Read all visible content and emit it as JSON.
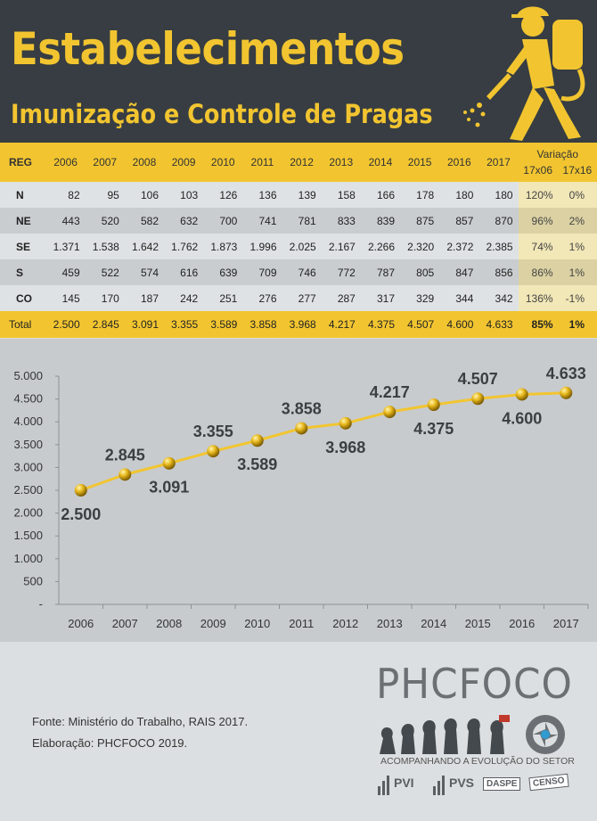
{
  "header": {
    "title": "Estabelecimentos",
    "subtitle": "Imunização e Controle de Pragas"
  },
  "colors": {
    "accent": "#f2c530",
    "header_bg": "#373d42",
    "line": "#f2c530",
    "text_dark": "#3b3f43"
  },
  "table": {
    "reg_header": "REG",
    "years": [
      "2006",
      "2007",
      "2008",
      "2009",
      "2010",
      "2011",
      "2012",
      "2013",
      "2014",
      "2015",
      "2016",
      "2017"
    ],
    "variation_title": "Variação",
    "variation_cols": [
      "17x06",
      "17x16"
    ],
    "rows": [
      {
        "reg": "N",
        "values": [
          "82",
          "95",
          "106",
          "103",
          "126",
          "136",
          "139",
          "158",
          "166",
          "178",
          "180",
          "180"
        ],
        "v1": "120%",
        "v2": "0%"
      },
      {
        "reg": "NE",
        "values": [
          "443",
          "520",
          "582",
          "632",
          "700",
          "741",
          "781",
          "833",
          "839",
          "875",
          "857",
          "870"
        ],
        "v1": "96%",
        "v2": "2%"
      },
      {
        "reg": "SE",
        "values": [
          "1.371",
          "1.538",
          "1.642",
          "1.762",
          "1.873",
          "1.996",
          "2.025",
          "2.167",
          "2.266",
          "2.320",
          "2.372",
          "2.385"
        ],
        "v1": "74%",
        "v2": "1%"
      },
      {
        "reg": "S",
        "values": [
          "459",
          "522",
          "574",
          "616",
          "639",
          "709",
          "746",
          "772",
          "787",
          "805",
          "847",
          "856"
        ],
        "v1": "86%",
        "v2": "1%"
      },
      {
        "reg": "CO",
        "values": [
          "145",
          "170",
          "187",
          "242",
          "251",
          "276",
          "277",
          "287",
          "317",
          "329",
          "344",
          "342"
        ],
        "v1": "136%",
        "v2": "-1%"
      }
    ],
    "total": {
      "reg": "Total",
      "values": [
        "2.500",
        "2.845",
        "3.091",
        "3.355",
        "3.589",
        "3.858",
        "3.968",
        "4.217",
        "4.375",
        "4.507",
        "4.600",
        "4.633"
      ],
      "v1": "85%",
      "v2": "1%"
    }
  },
  "chart_data": {
    "type": "line",
    "x": [
      "2006",
      "2007",
      "2008",
      "2009",
      "2010",
      "2011",
      "2012",
      "2013",
      "2014",
      "2015",
      "2016",
      "2017"
    ],
    "series": [
      {
        "values": [
          2500,
          2845,
          3091,
          3355,
          3589,
          3858,
          3968,
          4217,
          4375,
          4507,
          4600,
          4633
        ]
      }
    ],
    "data_labels": [
      "2.500",
      "2.845",
      "3.091",
      "3.355",
      "3.589",
      "3.858",
      "3.968",
      "4.217",
      "4.375",
      "4.507",
      "4.600",
      "4.633"
    ],
    "label_positions": [
      "below",
      "above",
      "below",
      "above",
      "below",
      "above",
      "below",
      "above",
      "below",
      "above",
      "below",
      "above"
    ],
    "yticks": [
      "-",
      "500",
      "1.000",
      "1.500",
      "2.000",
      "2.500",
      "3.000",
      "3.500",
      "4.000",
      "4.500",
      "5.000"
    ],
    "ylim": [
      0,
      5000
    ],
    "grid": false
  },
  "footer": {
    "fonte": "Fonte: Ministério do Trabalho, RAIS 2017.",
    "elaboracao": "Elaboração: PHCFOCO 2019.",
    "brand": "PHCFOCO",
    "tagline": "ACOMPANHANDO A EVOLUÇÃO DO SETOR",
    "badges": [
      "PVI",
      "PVS",
      "DASPE",
      "CENSO"
    ]
  }
}
